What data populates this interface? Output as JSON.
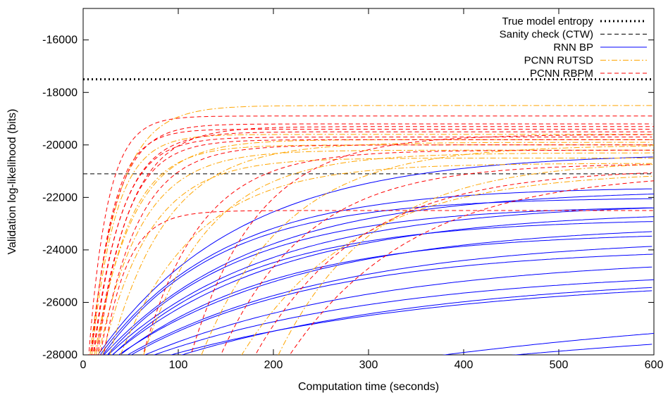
{
  "chart_data": {
    "type": "line",
    "xlabel": "Computation time (seconds)",
    "ylabel": "Validation log-likelihood (bits)",
    "xlim": [
      0,
      600
    ],
    "ylim": [
      -28000,
      -14800
    ],
    "xticks": [
      0,
      100,
      200,
      300,
      400,
      500,
      600
    ],
    "yticks": [
      -28000,
      -26000,
      -24000,
      -22000,
      -20000,
      -18000,
      -16000
    ],
    "grid": false,
    "legend_position": "top-right",
    "series": [
      {
        "name": "True model entropy",
        "style": "dotted",
        "color": "#000000",
        "value": -17500
      },
      {
        "name": "Sanity check (CTW)",
        "style": "dashed",
        "color": "#000000",
        "value": -21100
      },
      {
        "name": "RNN BP",
        "style": "solid",
        "color": "#0000ff",
        "runs": [
          {
            "start": 8,
            "final": -20300,
            "k": 150
          },
          {
            "start": 10,
            "final": -21600,
            "k": 130
          },
          {
            "start": 12,
            "final": -21700,
            "k": 160
          },
          {
            "start": 13,
            "final": -22000,
            "k": 120
          },
          {
            "start": 15,
            "final": -22200,
            "k": 170
          },
          {
            "start": 16,
            "final": -22300,
            "k": 140
          },
          {
            "start": 18,
            "final": -22500,
            "k": 180
          },
          {
            "start": 20,
            "final": -22800,
            "k": 150
          },
          {
            "start": 22,
            "final": -23000,
            "k": 200
          },
          {
            "start": 25,
            "final": -23300,
            "k": 170
          },
          {
            "start": 28,
            "final": -23500,
            "k": 220
          },
          {
            "start": 32,
            "final": -23900,
            "k": 200
          },
          {
            "start": 40,
            "final": -24200,
            "k": 250
          },
          {
            "start": 45,
            "final": -24700,
            "k": 260
          },
          {
            "start": 55,
            "final": -25000,
            "k": 300
          },
          {
            "start": 70,
            "final": -24900,
            "k": 280
          },
          {
            "start": 300,
            "final": -25700,
            "k": 500
          },
          {
            "start": 340,
            "final": -26100,
            "k": 600
          }
        ]
      },
      {
        "name": "PCNN RUTSD",
        "style": "dash-dot",
        "color": "#ffa500",
        "runs": [
          {
            "start": 6,
            "final": -18500,
            "k": 30
          },
          {
            "start": 8,
            "final": -19600,
            "k": 25
          },
          {
            "start": 10,
            "final": -19800,
            "k": 40
          },
          {
            "start": 12,
            "final": -20000,
            "k": 35
          },
          {
            "start": 14,
            "final": -20200,
            "k": 45
          },
          {
            "start": 18,
            "final": -20500,
            "k": 50
          },
          {
            "start": 25,
            "final": -19900,
            "k": 60
          },
          {
            "start": 35,
            "final": -20700,
            "k": 80
          },
          {
            "start": 60,
            "final": -20300,
            "k": 70
          },
          {
            "start": 120,
            "final": -20000,
            "k": 90
          },
          {
            "start": 160,
            "final": -21000,
            "k": 120
          },
          {
            "start": 200,
            "final": -20600,
            "k": 100
          }
        ]
      },
      {
        "name": "PCNN RBPM",
        "style": "dashed",
        "color": "#ff0000",
        "runs": [
          {
            "start": 5,
            "final": -18900,
            "k": 20
          },
          {
            "start": 7,
            "final": -19200,
            "k": 25
          },
          {
            "start": 8,
            "final": -19400,
            "k": 22
          },
          {
            "start": 9,
            "final": -19500,
            "k": 30
          },
          {
            "start": 10,
            "final": -19700,
            "k": 28
          },
          {
            "start": 12,
            "final": -19300,
            "k": 35
          },
          {
            "start": 14,
            "final": -19800,
            "k": 30
          },
          {
            "start": 16,
            "final": -20000,
            "k": 40
          },
          {
            "start": 20,
            "final": -22500,
            "k": 25
          },
          {
            "start": 60,
            "final": -20200,
            "k": 60
          },
          {
            "start": 110,
            "final": -19600,
            "k": 70
          },
          {
            "start": 140,
            "final": -20700,
            "k": 90
          },
          {
            "start": 175,
            "final": -20900,
            "k": 110
          },
          {
            "start": 210,
            "final": -21000,
            "k": 130
          }
        ]
      }
    ]
  }
}
